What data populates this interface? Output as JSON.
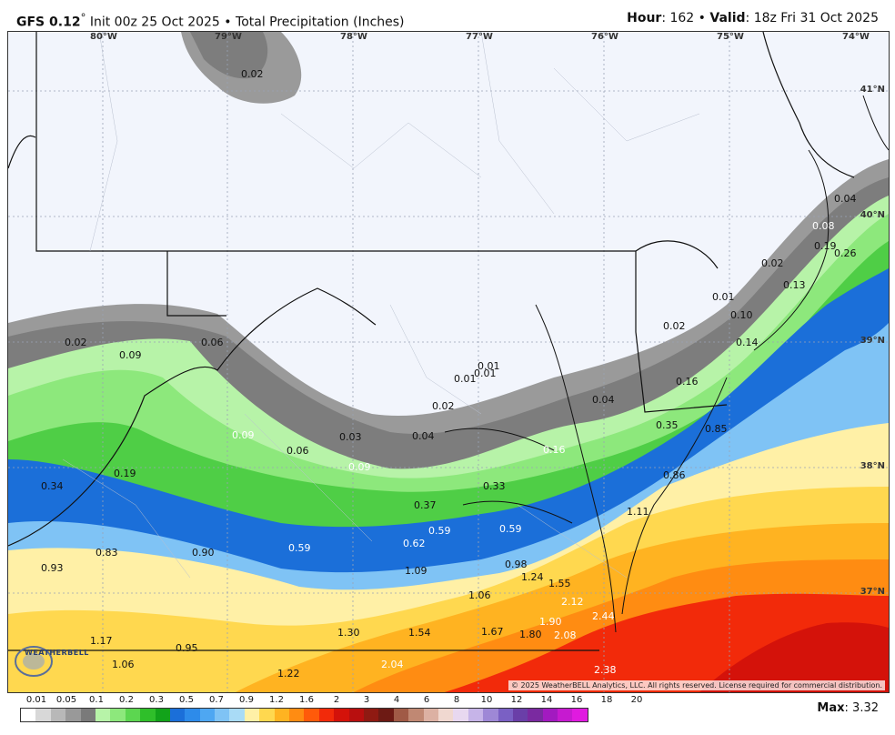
{
  "header": {
    "model": "GFS 0.12",
    "degree": "°",
    "init": "Init 00z 25 Oct 2025",
    "separator": "•",
    "field": "Total Precipitation (Inches)",
    "hour_label": "Hour",
    "hour_value": ": 162",
    "valid_label": "Valid",
    "valid_value": ": 18z Fri 31 Oct 2025"
  },
  "longitude_labels": [
    "80°W",
    "79°W",
    "78°W",
    "77°W",
    "76°W",
    "75°W",
    "74°W"
  ],
  "latitude_labels": [
    "41°N",
    "40°N",
    "39°N",
    "38°N",
    "37°N"
  ],
  "value_labels": [
    {
      "text": "0.02",
      "white": false
    },
    {
      "text": "0.04",
      "white": false
    },
    {
      "text": "0.08",
      "white": true
    },
    {
      "text": "0.19",
      "white": false
    },
    {
      "text": "0.26",
      "white": false
    },
    {
      "text": "0.02",
      "white": false
    },
    {
      "text": "0.13",
      "white": false
    },
    {
      "text": "0.01",
      "white": false
    },
    {
      "text": "0.10",
      "white": false
    },
    {
      "text": "0.02",
      "white": false
    },
    {
      "text": "0.14",
      "white": false
    },
    {
      "text": "0.02",
      "white": false
    },
    {
      "text": "0.09",
      "white": false
    },
    {
      "text": "0.06",
      "white": false
    },
    {
      "text": "0.01",
      "white": false
    },
    {
      "text": "0.01",
      "white": false
    },
    {
      "text": "0.01",
      "white": false
    },
    {
      "text": "0.02",
      "white": false
    },
    {
      "text": "0.04",
      "white": false
    },
    {
      "text": "0.16",
      "white": false
    },
    {
      "text": "0.35",
      "white": false
    },
    {
      "text": "0.85",
      "white": false
    },
    {
      "text": "0.09",
      "white": true
    },
    {
      "text": "0.06",
      "white": false
    },
    {
      "text": "0.03",
      "white": false
    },
    {
      "text": "0.04",
      "white": false
    },
    {
      "text": "0.09",
      "white": true
    },
    {
      "text": "0.16",
      "white": true
    },
    {
      "text": "0.34",
      "white": false
    },
    {
      "text": "0.19",
      "white": false
    },
    {
      "text": "0.33",
      "white": false
    },
    {
      "text": "0.86",
      "white": false
    },
    {
      "text": "0.37",
      "white": false
    },
    {
      "text": "0.59",
      "white": true
    },
    {
      "text": "0.59",
      "white": true
    },
    {
      "text": "1.11",
      "white": false
    },
    {
      "text": "0.62",
      "white": true
    },
    {
      "text": "0.59",
      "white": true
    },
    {
      "text": "0.93",
      "white": false
    },
    {
      "text": "0.83",
      "white": false
    },
    {
      "text": "0.90",
      "white": false
    },
    {
      "text": "1.09",
      "white": false
    },
    {
      "text": "0.98",
      "white": false
    },
    {
      "text": "1.24",
      "white": false
    },
    {
      "text": "1.55",
      "white": false
    },
    {
      "text": "1.06",
      "white": false
    },
    {
      "text": "2.12",
      "white": true
    },
    {
      "text": "1.90",
      "white": true
    },
    {
      "text": "2.44",
      "white": true
    },
    {
      "text": "1.17",
      "white": false
    },
    {
      "text": "1.30",
      "white": false
    },
    {
      "text": "1.54",
      "white": false
    },
    {
      "text": "1.67",
      "white": false
    },
    {
      "text": "1.80",
      "white": false
    },
    {
      "text": "2.08",
      "white": true
    },
    {
      "text": "0.95",
      "white": false
    },
    {
      "text": "1.06",
      "white": false
    },
    {
      "text": "1.22",
      "white": false
    },
    {
      "text": "2.04",
      "white": true
    },
    {
      "text": "2.38",
      "white": true
    }
  ],
  "copyright": "© 2025 WeatherBELL Analytics, LLC. All rights reserved. License required for commercial distribution.",
  "logo_text": "WEATHERBELL",
  "legend": {
    "ticks": [
      "0.01",
      "0.05",
      "0.1",
      "0.2",
      "0.3",
      "0.5",
      "0.7",
      "0.9",
      "1.2",
      "1.6",
      "2",
      "3",
      "4",
      "6",
      "8",
      "10",
      "12",
      "14",
      "16",
      "18",
      "20"
    ],
    "colors": [
      "#ffffff",
      "#d8d8d8",
      "#b8b8b8",
      "#999999",
      "#7a7a7a",
      "#b7f3a8",
      "#8de87c",
      "#5cd650",
      "#2fbf2a",
      "#12a31a",
      "#1b6fd9",
      "#2d8bea",
      "#4ea7f2",
      "#7fc3f5",
      "#a9dbf6",
      "#fff0a6",
      "#ffd84f",
      "#ffb321",
      "#ff8c12",
      "#ff5a0a",
      "#f22a0a",
      "#d4120a",
      "#b80f0f",
      "#8f1a12",
      "#6d1a14",
      "#a05a46",
      "#c08873",
      "#dcb1a3",
      "#f0d8d0",
      "#e8d8f0",
      "#c6b4e8",
      "#9e88d6",
      "#7a60c4",
      "#6a3fa8",
      "#7a2aa0",
      "#a21ac0",
      "#c61ad0",
      "#e01ae0"
    ]
  },
  "max": {
    "label": "Max",
    "value": ": 3.32"
  }
}
